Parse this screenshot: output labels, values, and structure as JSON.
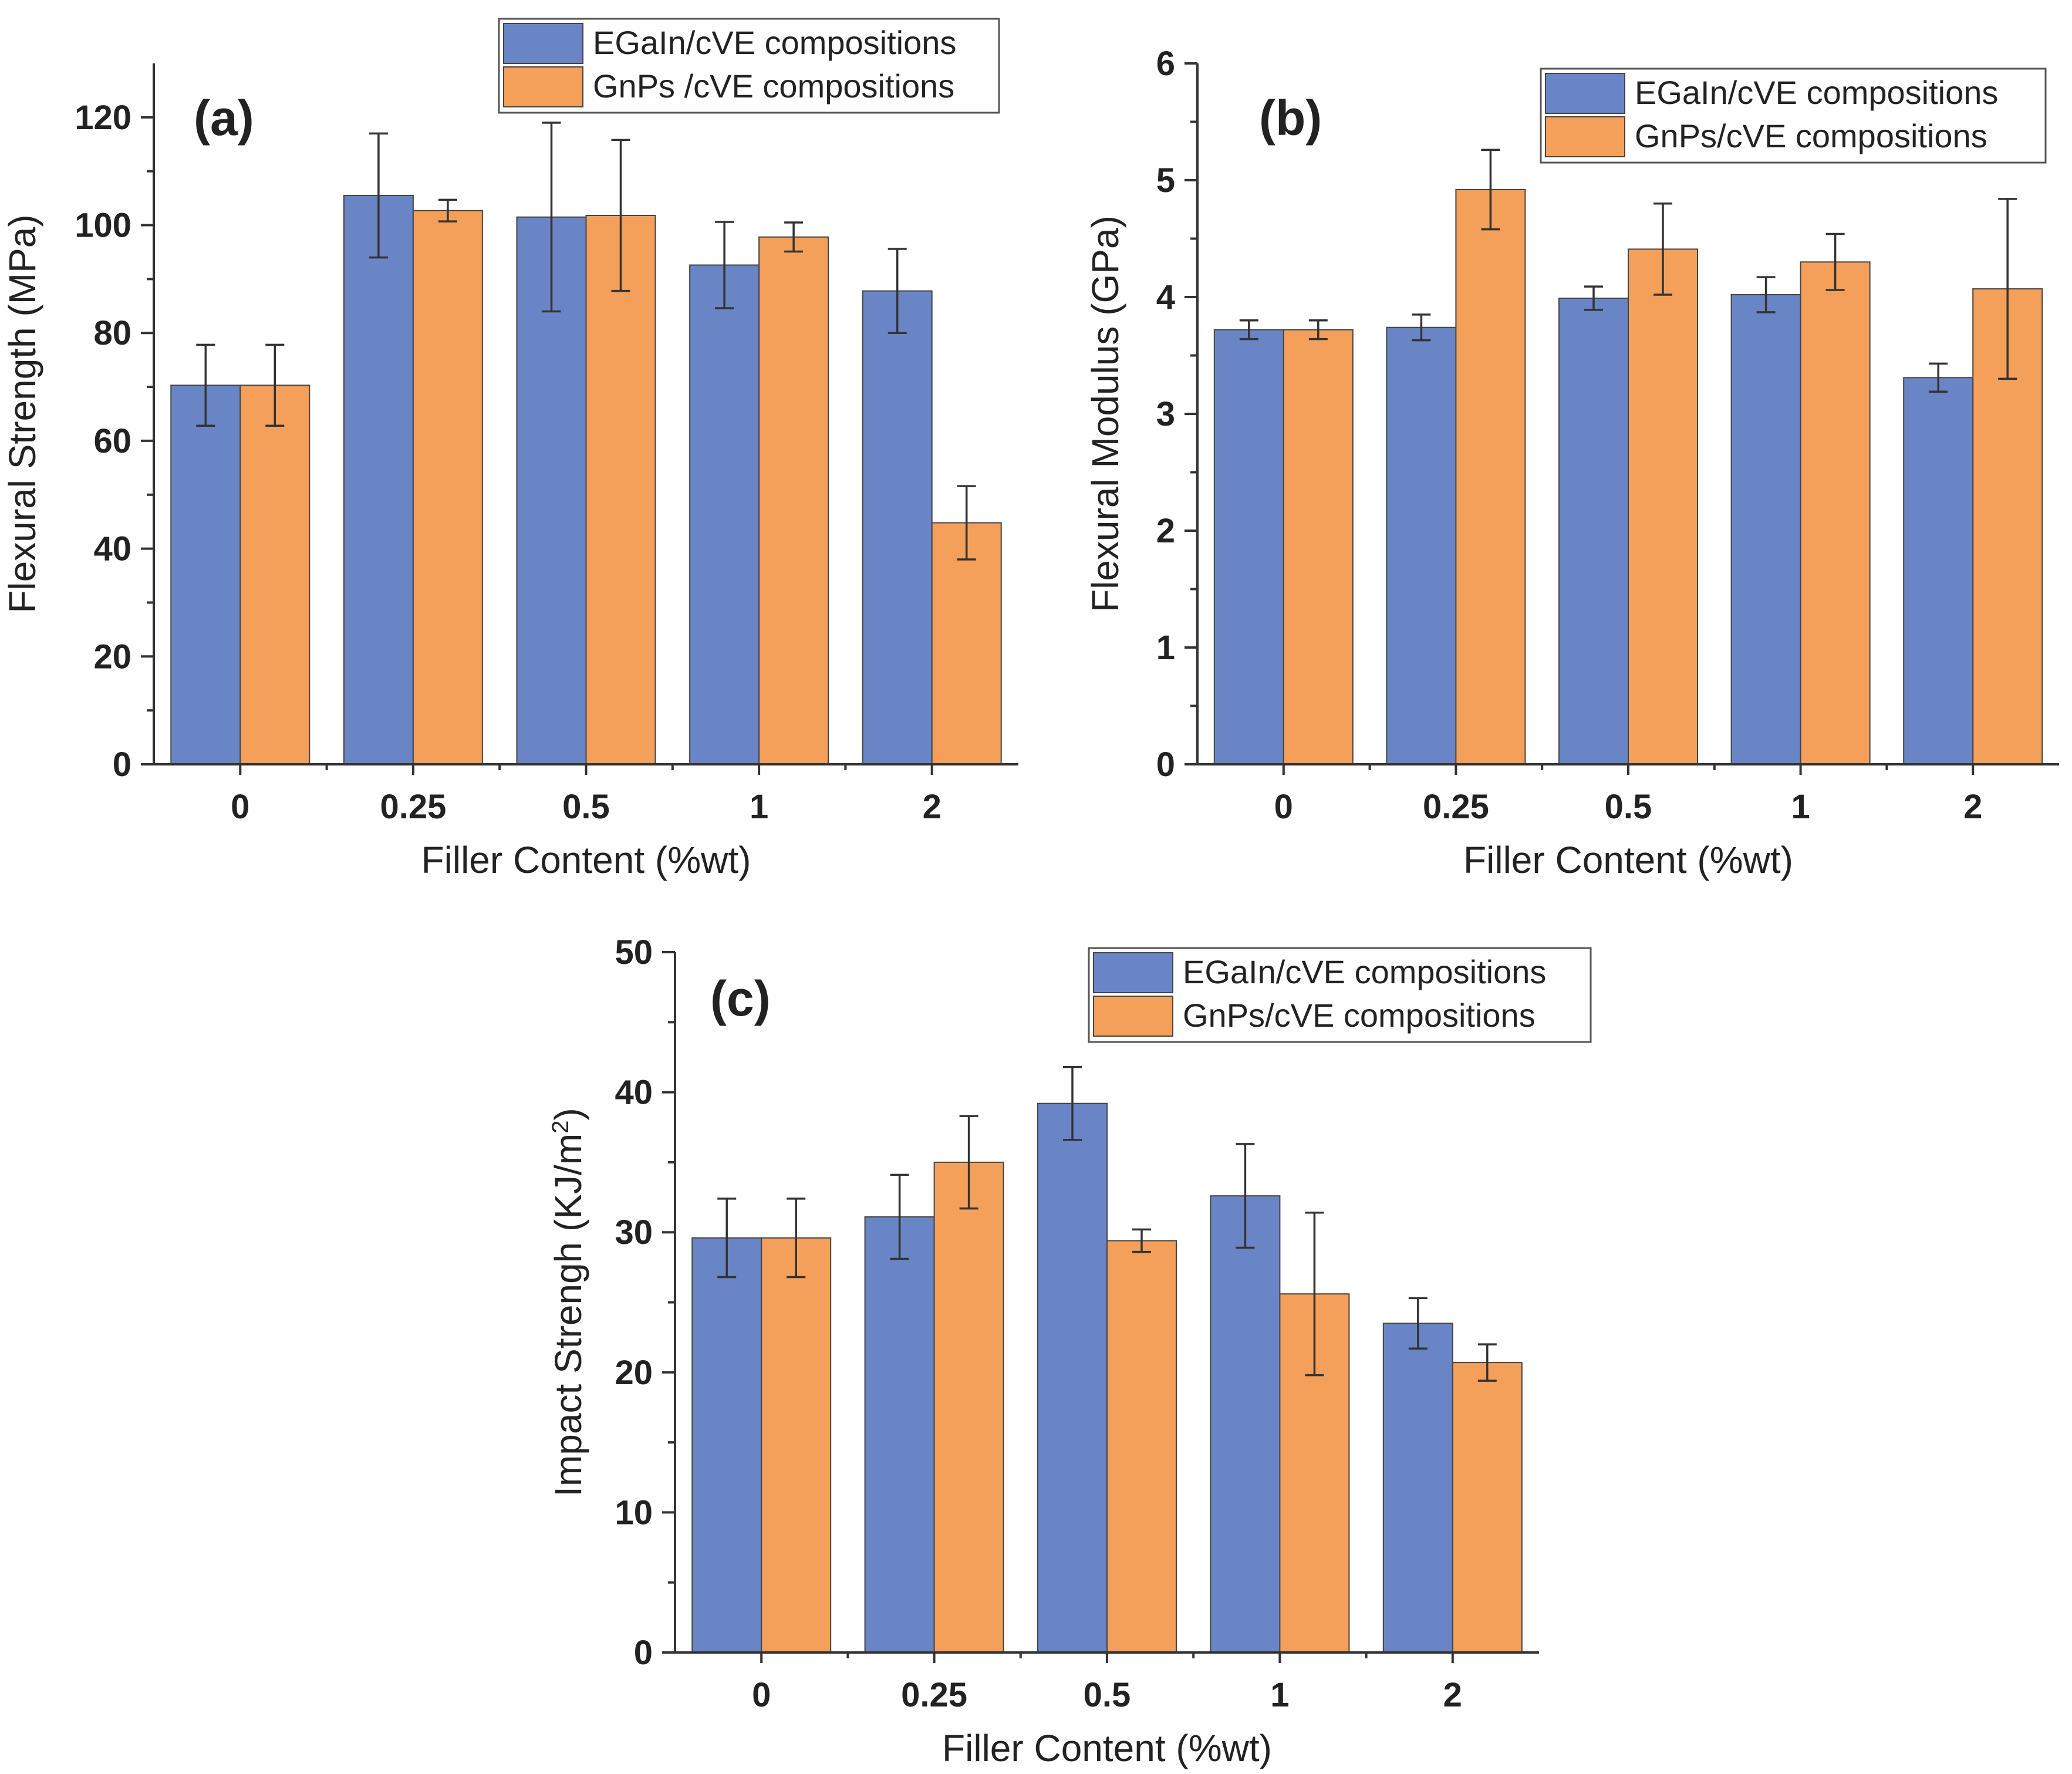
{
  "chart_data": [
    {
      "type": "bar",
      "panel": "(a)",
      "title": "",
      "xlabel": "Filler Content (%wt)",
      "ylabel": "Flexural Strength (MPa)",
      "ylim": [
        0,
        130
      ],
      "yticks": [
        0,
        20,
        40,
        60,
        80,
        100,
        120
      ],
      "yticks_minor": true,
      "categories": [
        "0",
        "0.25",
        "0.5",
        "1",
        "2"
      ],
      "legend_position": "top-right",
      "series": [
        {
          "name": "EGaIn/cVE compositions",
          "color": "#6a85c6",
          "values": [
            70.3,
            105.5,
            101.5,
            92.6,
            87.8
          ],
          "errors": [
            7.5,
            11.5,
            17.5,
            8.0,
            7.8
          ]
        },
        {
          "name": "GnPs /cVE compositions",
          "color": "#f4a05a",
          "values": [
            70.3,
            102.7,
            101.8,
            97.8,
            44.8
          ],
          "errors": [
            7.5,
            2.0,
            14.0,
            2.7,
            6.8
          ]
        }
      ]
    },
    {
      "type": "bar",
      "panel": "(b)",
      "title": "",
      "xlabel": "Filler Content (%wt)",
      "ylabel": "Flexural Modulus (GPa)",
      "ylim": [
        0,
        6
      ],
      "yticks": [
        0,
        1,
        2,
        3,
        4,
        5,
        6
      ],
      "yticks_minor": true,
      "categories": [
        "0",
        "0.25",
        "0.5",
        "1",
        "2"
      ],
      "legend_position": "top-right",
      "series": [
        {
          "name": "EGaIn/cVE compositions",
          "color": "#6a85c6",
          "values": [
            3.72,
            3.74,
            3.99,
            4.02,
            3.31
          ],
          "errors": [
            0.08,
            0.11,
            0.1,
            0.15,
            0.12
          ]
        },
        {
          "name": "GnPs/cVE compositions",
          "color": "#f4a05a",
          "values": [
            3.72,
            4.92,
            4.41,
            4.3,
            4.07
          ],
          "errors": [
            0.08,
            0.34,
            0.39,
            0.24,
            0.77
          ]
        }
      ]
    },
    {
      "type": "bar",
      "panel": "(c)",
      "title": "",
      "xlabel": "Filler Content (%wt)",
      "ylabel": "Impact Strengh (KJ/m",
      "ylabel_sup": "2",
      "ylabel_suffix": ")",
      "ylim": [
        0,
        50
      ],
      "yticks": [
        0,
        10,
        20,
        30,
        40,
        50
      ],
      "yticks_minor": true,
      "categories": [
        "0",
        "0.25",
        "0.5",
        "1",
        "2"
      ],
      "legend_position": "top-right",
      "series": [
        {
          "name": "EGaIn/cVE compositions",
          "color": "#6a85c6",
          "values": [
            29.6,
            31.1,
            39.2,
            32.6,
            23.5
          ],
          "errors": [
            2.8,
            3.0,
            2.6,
            3.7,
            1.8
          ]
        },
        {
          "name": "GnPs/cVE compositions",
          "color": "#f4a05a",
          "values": [
            29.6,
            35.0,
            29.4,
            25.6,
            20.7
          ],
          "errors": [
            2.8,
            3.3,
            0.8,
            5.8,
            1.3
          ]
        }
      ]
    }
  ]
}
